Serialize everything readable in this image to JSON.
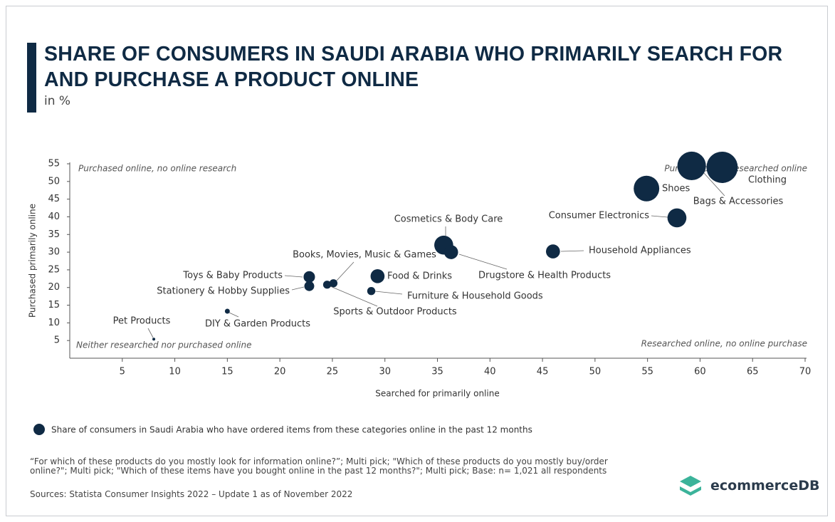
{
  "chart_data": {
    "type": "bubble",
    "title": "SHARE OF CONSUMERS IN SAUDI ARABIA WHO PRIMARILY SEARCH FOR AND PURCHASE A PRODUCT ONLINE",
    "subtitle": "in %",
    "x_label": "Searched for primarily online",
    "y_label": "Purchased primarily online",
    "quadrant_labels": [
      "Purchased online, no online research",
      "Purchased and researched online",
      "Neither researched nor purchased online",
      "Researched online, no online purchase"
    ],
    "labels": [
      "Clothing",
      "Bags & Accessories",
      "Shoes",
      "Consumer Electronics",
      "Household Appliances",
      "Cosmetics & Body Care",
      "Drugstore & Health Products",
      "Food & Drinks",
      "Furniture & Household Goods",
      "Books, Movies, Music & Games",
      "Sports & Outdoor Products",
      "Toys & Baby Products",
      "Stationery & Hobby Supplies",
      "DIY & Garden Products",
      "Pet Products"
    ],
    "x": [
      62.1,
      59.2,
      54.9,
      57.8,
      46,
      35.6,
      36.3,
      29.3,
      28.7,
      25.1,
      24.5,
      22.8,
      22.8,
      15,
      8
    ],
    "series": [
      {
        "name": "Share of consumers in Saudi Arabia who have ordered items from these categories online in the past 12 months",
        "color": "#0f2a44",
        "values": [
          54,
          54.4,
          48,
          39.7,
          30.2,
          32,
          30,
          23.2,
          19,
          21.2,
          20.8,
          23,
          20.4,
          13.3,
          5.4
        ],
        "sizes": [
          60,
          50,
          40,
          22,
          12,
          22,
          12,
          12,
          4,
          4,
          4,
          8,
          6,
          1.5,
          0.5
        ]
      }
    ],
    "xlim": [
      0,
      70
    ],
    "xticks": [
      5,
      10,
      15,
      20,
      25,
      30,
      35,
      40,
      45,
      50,
      55,
      60,
      65,
      70
    ],
    "ylim": [
      0,
      55
    ],
    "yticks": [
      5,
      10,
      15,
      20,
      25,
      30,
      35,
      40,
      45,
      50,
      55
    ],
    "grid": false,
    "footnote": "“For which of these products do you mostly look for information online?”; Multi pick; \"Which of these products do you mostly buy/order online?\"; Multi pick; \"Which of these items have you bought online in the past 12 months?\"; Multi pick; Base: n= 1,021 all respondents",
    "source": "Sources: Statista Consumer Insights 2022 – Update 1 as of November 2022",
    "brand": "ecommerceDB"
  }
}
